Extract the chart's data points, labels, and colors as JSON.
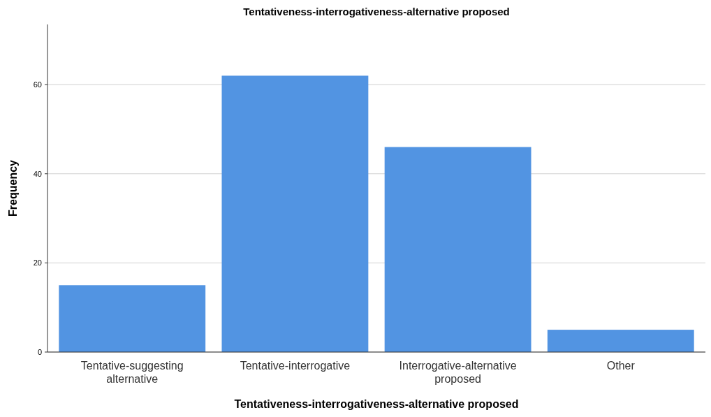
{
  "chart_data": {
    "type": "bar",
    "title": "Tentativeness-interrogativeness-alternative proposed",
    "xlabel": "Tentativeness-interrogativeness-alternative proposed",
    "ylabel": "Frequency",
    "categories": [
      "Tentative-suggesting alternative",
      "Tentative-interrogative",
      "Interrogative-alternative proposed",
      "Other"
    ],
    "values": [
      15,
      62,
      46,
      5
    ],
    "color": "#5294e2",
    "ylim": [
      0,
      73.5
    ],
    "yticks": [
      0,
      20,
      40,
      60
    ],
    "grid": "y"
  }
}
